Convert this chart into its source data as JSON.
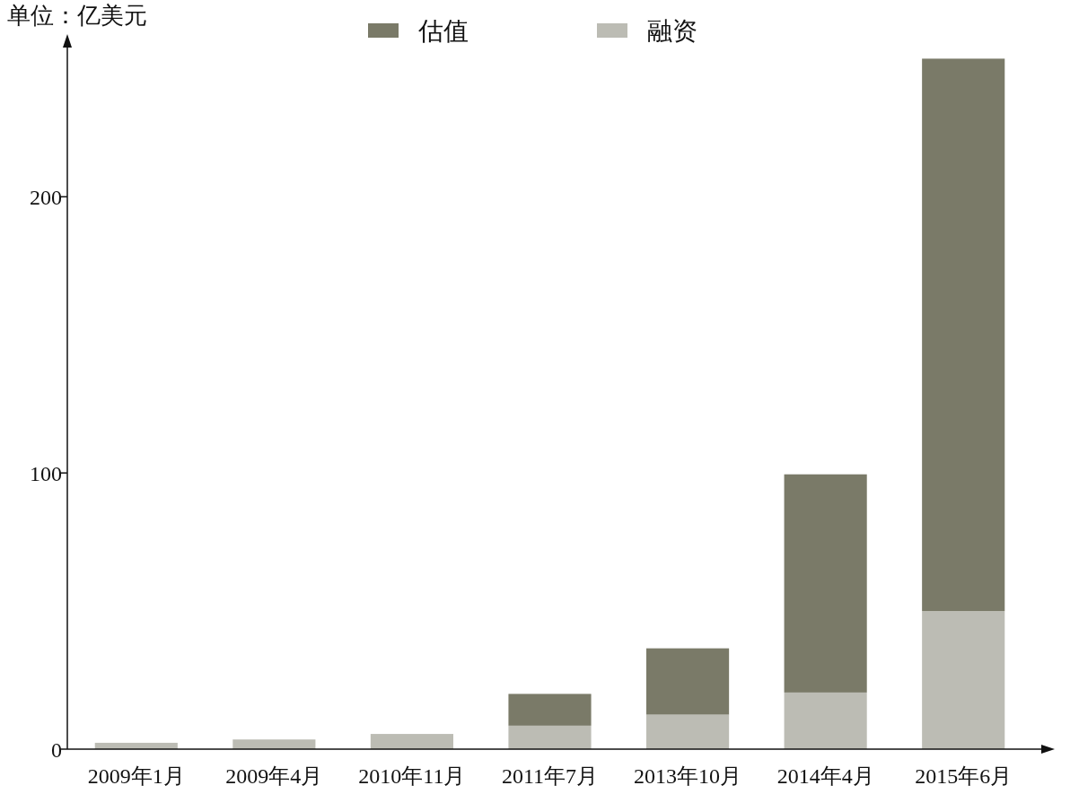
{
  "chart_data": {
    "type": "bar",
    "stacked": true,
    "ylabel": "单位：亿美元",
    "categories": [
      "2009年1月",
      "2009年4月",
      "2010年11月",
      "2011年7月",
      "2013年10月",
      "2014年4月",
      "2015年6月"
    ],
    "series": [
      {
        "name": "融资",
        "color": "#bcbcb4",
        "values": [
          2.3,
          3.5,
          5.5,
          8.5,
          12.5,
          20.5,
          50
        ]
      },
      {
        "name": "估值",
        "color": "#7a7a68",
        "values": [
          null,
          null,
          null,
          11.5,
          24,
          79,
          200
        ]
      }
    ],
    "ylim": [
      0,
      255
    ],
    "yticks": [
      0,
      100,
      200
    ],
    "grid": false,
    "legend": "top"
  }
}
